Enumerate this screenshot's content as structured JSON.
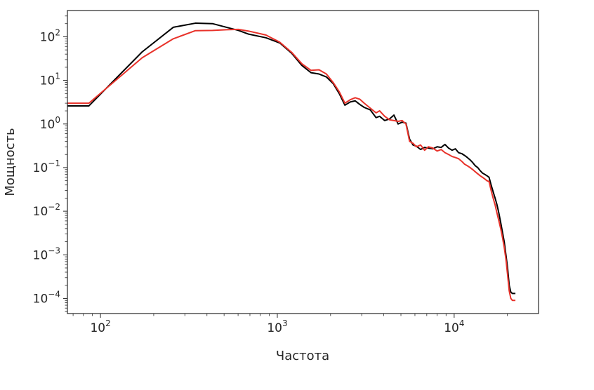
{
  "chart_data": {
    "type": "line",
    "title": "",
    "xlabel": "Частота",
    "ylabel": "Мощность",
    "xscale": "log",
    "yscale": "log",
    "xlim": [
      65,
      30000
    ],
    "ylim": [
      4.5e-05,
      400
    ],
    "grid": false,
    "legend": "none",
    "x_ticks": [
      {
        "value": 100,
        "base": "10",
        "exp": "2"
      },
      {
        "value": 1000,
        "base": "10",
        "exp": "3"
      },
      {
        "value": 10000,
        "base": "10",
        "exp": "4"
      }
    ],
    "y_ticks": [
      {
        "value": 0.0001,
        "base": "10",
        "exp": "−4"
      },
      {
        "value": 0.001,
        "base": "10",
        "exp": "−3"
      },
      {
        "value": 0.01,
        "base": "10",
        "exp": "−2"
      },
      {
        "value": 0.1,
        "base": "10",
        "exp": "−1"
      },
      {
        "value": 1,
        "base": "10",
        "exp": "0"
      },
      {
        "value": 10,
        "base": "10",
        "exp": "1"
      },
      {
        "value": 100,
        "base": "10",
        "exp": "2"
      }
    ],
    "series": [
      {
        "color": "#000000",
        "x": [
          65,
          86,
          172,
          258,
          344,
          430,
          516,
          602,
          688,
          861,
          1033,
          1205,
          1377,
          1550,
          1722,
          1894,
          2067,
          2239,
          2411,
          2583,
          2756,
          2928,
          3100,
          3358,
          3617,
          3789,
          4047,
          4305,
          4564,
          4822,
          5080,
          5339,
          5597,
          5856,
          6114,
          6459,
          6804,
          7148,
          7579,
          8010,
          8441,
          8870,
          9300,
          9730,
          10160,
          10590,
          11020,
          11450,
          11880,
          12310,
          12740,
          13170,
          13600,
          14030,
          14460,
          14890,
          15320,
          15750,
          16180,
          16610,
          17040,
          17470,
          17900,
          18330,
          18760,
          19190,
          19620,
          20050,
          20480,
          20910,
          21340,
          21770,
          22200
        ],
        "y": [
          2.6,
          2.6,
          45,
          165,
          205,
          200,
          165,
          140,
          115,
          95,
          72,
          42,
          22,
          15,
          14,
          12,
          8.5,
          5,
          2.7,
          3.2,
          3.4,
          2.8,
          2.4,
          2.1,
          1.4,
          1.5,
          1.2,
          1.3,
          1.6,
          1.0,
          1.1,
          1.05,
          0.45,
          0.33,
          0.31,
          0.26,
          0.29,
          0.28,
          0.27,
          0.3,
          0.29,
          0.34,
          0.28,
          0.25,
          0.27,
          0.22,
          0.21,
          0.19,
          0.17,
          0.15,
          0.13,
          0.11,
          0.1,
          0.085,
          0.075,
          0.07,
          0.065,
          0.06,
          0.04,
          0.028,
          0.02,
          0.014,
          0.009,
          0.0055,
          0.0033,
          0.002,
          0.001,
          0.0005,
          0.0002,
          0.00014,
          0.00013,
          0.00013,
          0.00013
        ]
      },
      {
        "color": "#e8322a",
        "x": [
          65,
          86,
          172,
          258,
          344,
          430,
          516,
          602,
          688,
          861,
          1033,
          1205,
          1377,
          1550,
          1722,
          1894,
          2067,
          2239,
          2411,
          2583,
          2756,
          2928,
          3100,
          3358,
          3617,
          3789,
          4047,
          4305,
          4564,
          4822,
          5080,
          5339,
          5597,
          5856,
          6114,
          6459,
          6804,
          7148,
          7579,
          8010,
          8441,
          8870,
          9300,
          9730,
          10160,
          10590,
          11020,
          11450,
          11880,
          12310,
          12740,
          13170,
          13600,
          14030,
          14460,
          14890,
          15320,
          15750,
          16180,
          16610,
          17040,
          17470,
          17900,
          18330,
          18760,
          19190,
          19620,
          20050,
          20480,
          20910,
          21340,
          21770,
          22200
        ],
        "y": [
          3.0,
          3.0,
          33,
          90,
          138,
          140,
          145,
          148,
          135,
          110,
          75,
          44,
          24,
          17,
          17.5,
          14,
          9,
          5.5,
          3.0,
          3.6,
          4.0,
          3.7,
          3.0,
          2.3,
          1.8,
          2.0,
          1.5,
          1.25,
          1.2,
          1.15,
          1.2,
          1.0,
          0.4,
          0.36,
          0.3,
          0.33,
          0.25,
          0.3,
          0.28,
          0.24,
          0.26,
          0.22,
          0.2,
          0.18,
          0.17,
          0.16,
          0.14,
          0.12,
          0.11,
          0.1,
          0.09,
          0.08,
          0.072,
          0.065,
          0.06,
          0.055,
          0.05,
          0.048,
          0.03,
          0.02,
          0.014,
          0.009,
          0.006,
          0.004,
          0.0025,
          0.0015,
          0.0008,
          0.00035,
          0.00015,
          0.0001,
          9e-05,
          9e-05,
          9e-05
        ]
      }
    ]
  }
}
